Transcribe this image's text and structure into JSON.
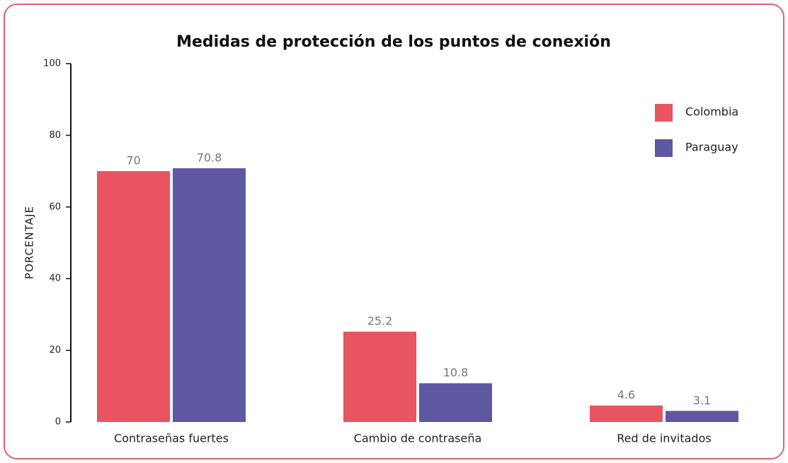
{
  "chart_data": {
    "type": "bar",
    "title": "Medidas de protección de los puntos de conexión",
    "y_label": "PORCENTAJE",
    "categories": [
      "Contraseñas fuertes",
      "Cambio de contraseña",
      "Red de invitados"
    ],
    "series": [
      {
        "name": "Colombia",
        "color": "#e8545f",
        "values": [
          70,
          25.2,
          4.6
        ]
      },
      {
        "name": "Paraguay",
        "color": "#5e58a2",
        "values": [
          70.8,
          10.8,
          3.1
        ]
      }
    ],
    "ylim": [
      0,
      100
    ],
    "yticks": [
      0,
      20,
      40,
      60,
      80,
      100
    ],
    "grid": false,
    "legend": "top-right"
  }
}
